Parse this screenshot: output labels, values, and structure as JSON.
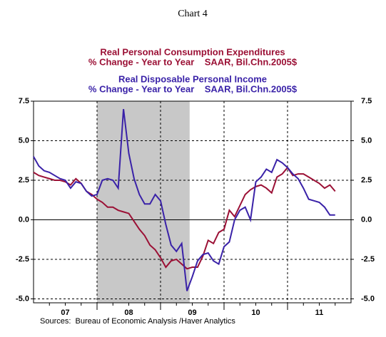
{
  "chart_data": {
    "type": "line",
    "title": "Chart 4",
    "series": [
      {
        "name": "Real Personal Consumption Expenditures",
        "units": "% Change - Year to Year    SAAR, Bil.Chn.2005$",
        "color": "#9b1035",
        "values": [
          3.0,
          2.8,
          2.7,
          2.6,
          2.5,
          2.5,
          2.4,
          2.2,
          2.6,
          2.3,
          1.8,
          1.6,
          1.3,
          1.1,
          0.8,
          0.8,
          0.6,
          0.5,
          0.4,
          -0.1,
          -0.6,
          -1.0,
          -1.6,
          -1.9,
          -2.4,
          -3.0,
          -2.6,
          -2.5,
          -2.8,
          -3.1,
          -3.0,
          -3.0,
          -2.3,
          -1.3,
          -1.5,
          -0.8,
          -0.6,
          0.6,
          0.2,
          0.9,
          1.6,
          1.9,
          2.1,
          2.2,
          2.0,
          1.7,
          2.7,
          2.9,
          3.3,
          2.8,
          2.9,
          2.9,
          2.7,
          2.5,
          2.3,
          2.0,
          2.2,
          1.8
        ]
      },
      {
        "name": "Real Disposable Personal Income",
        "units": "% Change - Year to Year    SAAR, Bil.Chn.2005$",
        "color": "#3a22a8",
        "values": [
          4.0,
          3.4,
          3.1,
          3.0,
          2.8,
          2.6,
          2.5,
          2.0,
          2.4,
          2.3,
          1.8,
          1.5,
          1.6,
          2.5,
          2.6,
          2.5,
          2.0,
          7.0,
          4.2,
          2.6,
          1.6,
          1.0,
          1.0,
          1.6,
          1.2,
          -0.3,
          -1.6,
          -2.0,
          -1.5,
          -4.5,
          -3.6,
          -2.6,
          -2.2,
          -2.1,
          -2.6,
          -2.8,
          -1.7,
          -1.4,
          0.0,
          0.6,
          0.8,
          0.0,
          2.4,
          2.7,
          3.2,
          3.0,
          3.8,
          3.6,
          3.3,
          2.9,
          2.6,
          2.0,
          1.3,
          1.2,
          1.1,
          0.8,
          0.3,
          0.3
        ]
      }
    ],
    "x": [
      0,
      1,
      2,
      3,
      4,
      5,
      6,
      7,
      8,
      9,
      10,
      11,
      12,
      13,
      14,
      15,
      16,
      17,
      18,
      19,
      20,
      21,
      22,
      23,
      24,
      25,
      26,
      27,
      28,
      29,
      30,
      31,
      32,
      33,
      34,
      35,
      36,
      37,
      38,
      39,
      40,
      41,
      42,
      43,
      44,
      45,
      46,
      47,
      48,
      49,
      50,
      51,
      52,
      53,
      54,
      55,
      56,
      57
    ],
    "xlim": [
      0,
      60
    ],
    "xticks": [
      {
        "value": 6,
        "label": "07"
      },
      {
        "value": 18,
        "label": "08"
      },
      {
        "value": 30,
        "label": "09"
      },
      {
        "value": 42,
        "label": "10"
      },
      {
        "value": 54,
        "label": "11"
      }
    ],
    "xgrid": [
      12,
      24,
      36,
      48
    ],
    "shade": [
      12,
      29.5
    ],
    "ylim": [
      -5.25,
      7.5
    ],
    "yticks": [
      {
        "value": 7.5,
        "label": "7.5"
      },
      {
        "value": 5,
        "label": "5.0"
      },
      {
        "value": 2.5,
        "label": "2.5"
      },
      {
        "value": 0,
        "label": "0.0"
      },
      {
        "value": -2.5,
        "label": "-2.5"
      },
      {
        "value": -5,
        "label": "-5.0"
      }
    ],
    "grid": true,
    "source": "Sources:  Bureau of Economic Analysis /Haver Analytics"
  }
}
